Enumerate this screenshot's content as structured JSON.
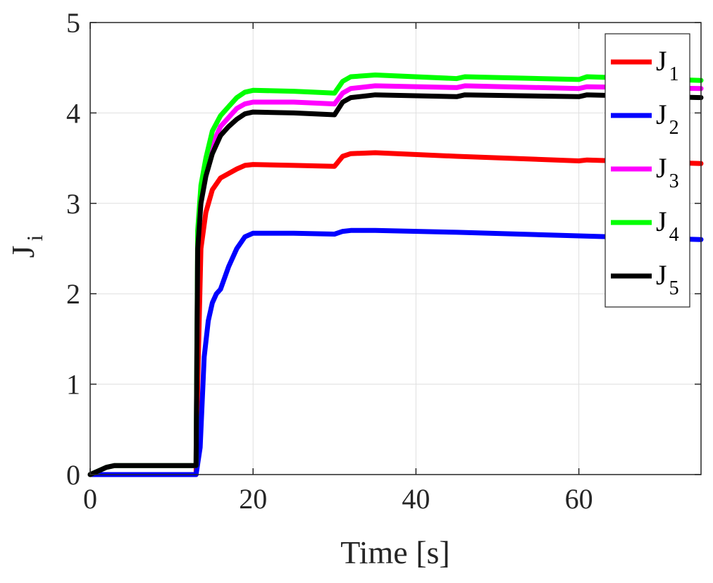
{
  "chart_data": {
    "type": "line",
    "xlabel": "Time [s]",
    "ylabel": "J",
    "ylabel_subscript": "i",
    "xlim": [
      0,
      75
    ],
    "ylim": [
      0,
      5
    ],
    "x_ticks": [
      0,
      20,
      40,
      60
    ],
    "y_ticks": [
      0,
      1,
      2,
      3,
      4,
      5
    ],
    "grid": true,
    "legend_position": "top-right",
    "series": [
      {
        "name": "J1",
        "legend_main": "J",
        "legend_sub": "1",
        "color": "#ff0000",
        "points": [
          [
            0,
            0
          ],
          [
            13,
            0
          ],
          [
            13.2,
            1.0
          ],
          [
            13.6,
            2.5
          ],
          [
            14.2,
            2.9
          ],
          [
            15,
            3.15
          ],
          [
            16,
            3.28
          ],
          [
            17,
            3.33
          ],
          [
            18,
            3.38
          ],
          [
            19,
            3.42
          ],
          [
            20,
            3.43
          ],
          [
            25,
            3.42
          ],
          [
            30,
            3.41
          ],
          [
            31,
            3.52
          ],
          [
            32,
            3.55
          ],
          [
            35,
            3.56
          ],
          [
            45,
            3.52
          ],
          [
            60,
            3.47
          ],
          [
            61,
            3.48
          ],
          [
            75,
            3.44
          ]
        ]
      },
      {
        "name": "J2",
        "legend_main": "J",
        "legend_sub": "2",
        "color": "#0000ff",
        "points": [
          [
            0,
            0
          ],
          [
            13,
            0
          ],
          [
            13.5,
            0.3
          ],
          [
            14,
            1.3
          ],
          [
            14.5,
            1.7
          ],
          [
            15,
            1.9
          ],
          [
            15.5,
            2.0
          ],
          [
            16,
            2.05
          ],
          [
            17,
            2.3
          ],
          [
            18,
            2.5
          ],
          [
            19,
            2.63
          ],
          [
            20,
            2.67
          ],
          [
            25,
            2.67
          ],
          [
            30,
            2.66
          ],
          [
            31,
            2.69
          ],
          [
            32,
            2.7
          ],
          [
            35,
            2.7
          ],
          [
            45,
            2.68
          ],
          [
            60,
            2.64
          ],
          [
            75,
            2.6
          ]
        ]
      },
      {
        "name": "J3",
        "legend_main": "J",
        "legend_sub": "3",
        "color": "#ff00ff",
        "points": [
          [
            0,
            0
          ],
          [
            2,
            0.08
          ],
          [
            3,
            0.1
          ],
          [
            13,
            0.1
          ],
          [
            13.2,
            2.6
          ],
          [
            13.6,
            3.1
          ],
          [
            14.2,
            3.4
          ],
          [
            15,
            3.65
          ],
          [
            16,
            3.85
          ],
          [
            17,
            3.95
          ],
          [
            18,
            4.05
          ],
          [
            19,
            4.1
          ],
          [
            20,
            4.12
          ],
          [
            25,
            4.12
          ],
          [
            30,
            4.1
          ],
          [
            31,
            4.22
          ],
          [
            32,
            4.27
          ],
          [
            35,
            4.3
          ],
          [
            45,
            4.28
          ],
          [
            46,
            4.3
          ],
          [
            60,
            4.27
          ],
          [
            61,
            4.29
          ],
          [
            75,
            4.27
          ]
        ]
      },
      {
        "name": "J4",
        "legend_main": "J",
        "legend_sub": "4",
        "color": "#00ff00",
        "points": [
          [
            0,
            0
          ],
          [
            2,
            0.08
          ],
          [
            3,
            0.1
          ],
          [
            13,
            0.1
          ],
          [
            13.2,
            2.7
          ],
          [
            13.6,
            3.2
          ],
          [
            14.2,
            3.5
          ],
          [
            15,
            3.8
          ],
          [
            16,
            3.97
          ],
          [
            17,
            4.07
          ],
          [
            18,
            4.17
          ],
          [
            19,
            4.23
          ],
          [
            20,
            4.25
          ],
          [
            25,
            4.24
          ],
          [
            30,
            4.22
          ],
          [
            31,
            4.35
          ],
          [
            32,
            4.4
          ],
          [
            35,
            4.42
          ],
          [
            45,
            4.38
          ],
          [
            46,
            4.4
          ],
          [
            60,
            4.37
          ],
          [
            61,
            4.4
          ],
          [
            75,
            4.36
          ]
        ]
      },
      {
        "name": "J5",
        "legend_main": "J",
        "legend_sub": "5",
        "color": "#000000",
        "points": [
          [
            0,
            0
          ],
          [
            2,
            0.08
          ],
          [
            3,
            0.1
          ],
          [
            13,
            0.1
          ],
          [
            13.2,
            2.5
          ],
          [
            13.6,
            3.0
          ],
          [
            14.2,
            3.3
          ],
          [
            15,
            3.55
          ],
          [
            16,
            3.75
          ],
          [
            17,
            3.85
          ],
          [
            18,
            3.93
          ],
          [
            19,
            3.99
          ],
          [
            20,
            4.01
          ],
          [
            25,
            4.0
          ],
          [
            30,
            3.98
          ],
          [
            31,
            4.12
          ],
          [
            32,
            4.17
          ],
          [
            35,
            4.2
          ],
          [
            45,
            4.18
          ],
          [
            46,
            4.2
          ],
          [
            60,
            4.18
          ],
          [
            61,
            4.2
          ],
          [
            75,
            4.17
          ]
        ]
      }
    ]
  }
}
